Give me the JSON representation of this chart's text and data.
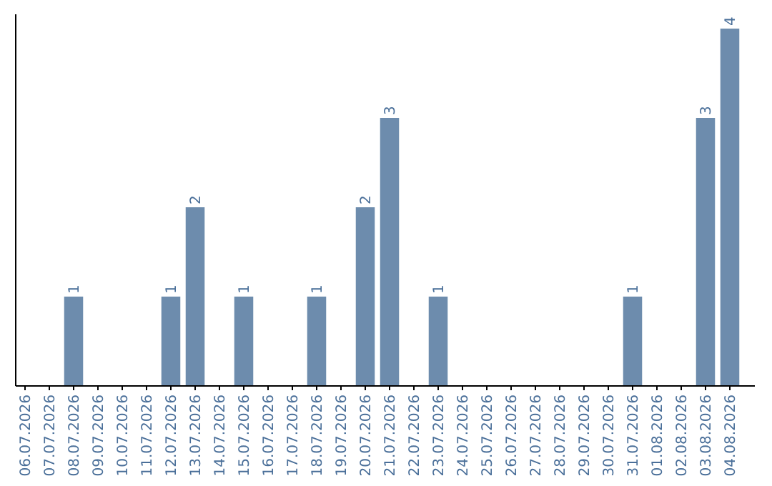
{
  "chart_data": {
    "type": "bar",
    "categories": [
      "06.07.2026",
      "07.07.2026",
      "08.07.2026",
      "09.07.2026",
      "10.07.2026",
      "11.07.2026",
      "12.07.2026",
      "13.07.2026",
      "14.07.2026",
      "15.07.2026",
      "16.07.2026",
      "17.07.2026",
      "18.07.2026",
      "19.07.2026",
      "20.07.2026",
      "21.07.2026",
      "22.07.2026",
      "23.07.2026",
      "24.07.2026",
      "25.07.2026",
      "26.07.2026",
      "27.07.2026",
      "28.07.2026",
      "29.07.2026",
      "30.07.2026",
      "31.07.2026",
      "01.08.2026",
      "02.08.2026",
      "03.08.2026",
      "04.08.2026"
    ],
    "values": [
      0,
      0,
      1,
      0,
      0,
      0,
      1,
      2,
      0,
      1,
      0,
      0,
      1,
      0,
      2,
      3,
      0,
      1,
      0,
      0,
      0,
      0,
      0,
      0,
      0,
      1,
      0,
      0,
      3,
      4
    ],
    "value_labels": [
      null,
      null,
      "1",
      null,
      null,
      null,
      "1",
      "2",
      null,
      "1",
      null,
      null,
      "1",
      null,
      "2",
      "3",
      null,
      "1",
      null,
      null,
      null,
      null,
      null,
      null,
      null,
      "1",
      null,
      null,
      "3",
      "4"
    ],
    "color": "#6d8cad"
  }
}
